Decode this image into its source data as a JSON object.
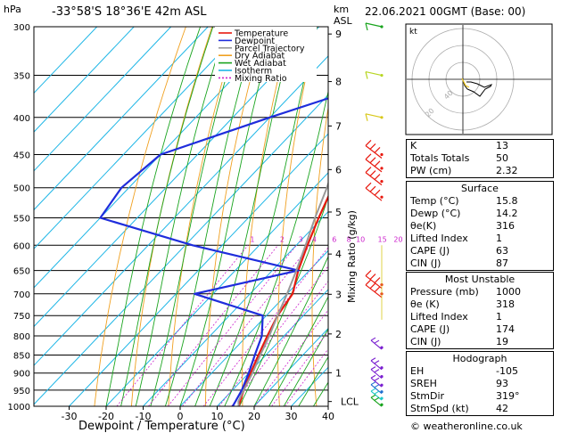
{
  "header": {
    "pressure_unit": "hPa",
    "location": "-33°58'S  18°36'E  42m  ASL",
    "height_unit_top": "km",
    "height_unit_bottom": "ASL",
    "datetime": "22.06.2021  00GMT  (Base: 00)"
  },
  "legend": [
    {
      "label": "Temperature",
      "color": "#e8190f"
    },
    {
      "label": "Dewpoint",
      "color": "#1f2ddc"
    },
    {
      "label": "Parcel Trajectory",
      "color": "#999999"
    },
    {
      "label": "Dry Adiabat",
      "color": "#f0a020"
    },
    {
      "label": "Wet Adiabat",
      "color": "#19a41e"
    },
    {
      "label": "Isotherm",
      "color": "#1eb6e6"
    },
    {
      "label": "Mixing Ratio",
      "color": "#cc22cc"
    }
  ],
  "hodograph": {
    "unit_label": "kt",
    "ring_labels": [
      "20",
      "40"
    ]
  },
  "indices": [
    {
      "label": "K",
      "value": "13"
    },
    {
      "label": "Totals Totals",
      "value": "50"
    },
    {
      "label": "PW (cm)",
      "value": "2.32"
    }
  ],
  "surface": {
    "title": "Surface",
    "rows": [
      {
        "label": "Temp (°C)",
        "value": "15.8"
      },
      {
        "label": "Dewp (°C)",
        "value": "14.2"
      },
      {
        "label": "θe(K)",
        "value": "316"
      },
      {
        "label": "Lifted Index",
        "value": "1"
      },
      {
        "label": "CAPE (J)",
        "value": "63"
      },
      {
        "label": "CIN (J)",
        "value": "87"
      }
    ]
  },
  "most_unstable": {
    "title": "Most Unstable",
    "rows": [
      {
        "label": "Pressure (mb)",
        "value": "1000"
      },
      {
        "label": "θe (K)",
        "value": "318"
      },
      {
        "label": "Lifted Index",
        "value": "1"
      },
      {
        "label": "CAPE (J)",
        "value": "174"
      },
      {
        "label": "CIN (J)",
        "value": "19"
      }
    ]
  },
  "hodograph_table": {
    "title": "Hodograph",
    "rows": [
      {
        "label": "EH",
        "value": "-105"
      },
      {
        "label": "SREH",
        "value": "93"
      },
      {
        "label": "StmDir",
        "value": "319°"
      },
      {
        "label": "StmSpd (kt)",
        "value": "42"
      }
    ]
  },
  "footer": "© weatheronline.co.uk",
  "chart_data": {
    "type": "line",
    "title": "-33°58'S  18°36'E  42m  ASL",
    "xlabel": "Dewpoint / Temperature (°C)",
    "ylabel": "hPa",
    "right_label": "Mixing Ratio (g/kg)",
    "xlim": [
      -40,
      40
    ],
    "ylim": [
      1000,
      300
    ],
    "x_ticks": [
      -30,
      -20,
      -10,
      0,
      10,
      20,
      30,
      40
    ],
    "pressure_ticks": [
      300,
      350,
      400,
      450,
      500,
      550,
      600,
      650,
      700,
      750,
      800,
      850,
      900,
      950,
      1000
    ],
    "km_ticks": [
      {
        "label": "9",
        "p": 307
      },
      {
        "label": "8",
        "p": 357
      },
      {
        "label": "7",
        "p": 411
      },
      {
        "label": "6",
        "p": 472
      },
      {
        "label": "5",
        "p": 540
      },
      {
        "label": "4",
        "p": 617
      },
      {
        "label": "3",
        "p": 701
      },
      {
        "label": "2",
        "p": 795
      },
      {
        "label": "1",
        "p": 899
      },
      {
        "label": "LCL",
        "p": 985
      }
    ],
    "mixing_ratio_labels": [
      "1",
      "2",
      "3",
      "4",
      "6",
      "8",
      "10",
      "15",
      "20",
      "25"
    ],
    "grid": true,
    "series": [
      {
        "name": "Temperature",
        "points": [
          [
            1000,
            15.8
          ],
          [
            950,
            13
          ],
          [
            900,
            10.5
          ],
          [
            850,
            8
          ],
          [
            800,
            5.5
          ],
          [
            750,
            3
          ],
          [
            700,
            1.5
          ],
          [
            650,
            -3
          ],
          [
            600,
            -7
          ],
          [
            550,
            -11
          ],
          [
            500,
            -15
          ],
          [
            450,
            -20
          ],
          [
            400,
            -26
          ],
          [
            350,
            -32
          ],
          [
            300,
            -40
          ]
        ]
      },
      {
        "name": "Dewpoint",
        "points": [
          [
            1000,
            14.2
          ],
          [
            950,
            12.5
          ],
          [
            900,
            10
          ],
          [
            850,
            7
          ],
          [
            800,
            4
          ],
          [
            750,
            -1
          ],
          [
            700,
            -25
          ],
          [
            650,
            -3
          ],
          [
            600,
            -38
          ],
          [
            550,
            -70
          ],
          [
            500,
            -72
          ],
          [
            450,
            -70
          ],
          [
            400,
            -50
          ],
          [
            370,
            -36
          ],
          [
            350,
            -40
          ],
          [
            300,
            -45
          ]
        ]
      },
      {
        "name": "Parcel Trajectory",
        "points": [
          [
            1000,
            15.8
          ],
          [
            985,
            14.5
          ],
          [
            950,
            13
          ],
          [
            900,
            11
          ],
          [
            850,
            8.5
          ],
          [
            800,
            6
          ],
          [
            750,
            3
          ],
          [
            700,
            0
          ],
          [
            650,
            -3.5
          ],
          [
            600,
            -7.5
          ],
          [
            550,
            -12
          ],
          [
            500,
            -16.5
          ],
          [
            450,
            -22
          ],
          [
            400,
            -28.5
          ],
          [
            350,
            -36
          ]
        ]
      }
    ]
  }
}
